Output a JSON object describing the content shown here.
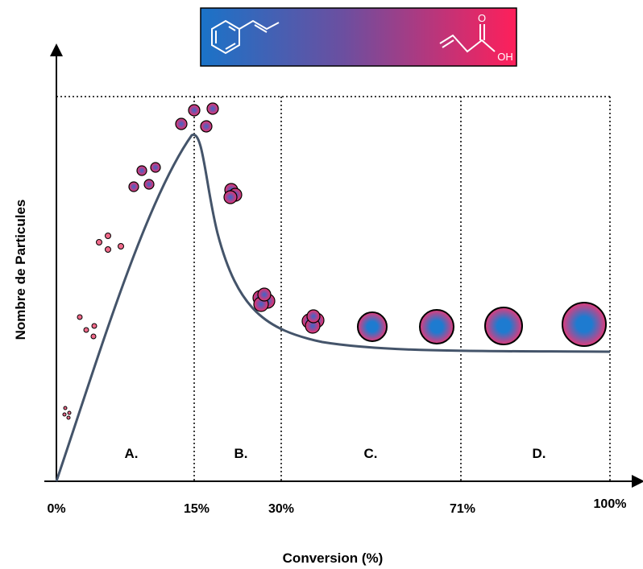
{
  "y_axis_label": "Nombre de Particules",
  "x_axis_label": "Conversion (%)",
  "x_ticks": [
    "0%",
    "15%",
    "30%",
    "71%",
    "100%"
  ],
  "regions": [
    "A.",
    "B.",
    "C.",
    "D."
  ],
  "molecule_labels": {
    "carbonyl": "O",
    "hydroxyl": "OH"
  }
}
